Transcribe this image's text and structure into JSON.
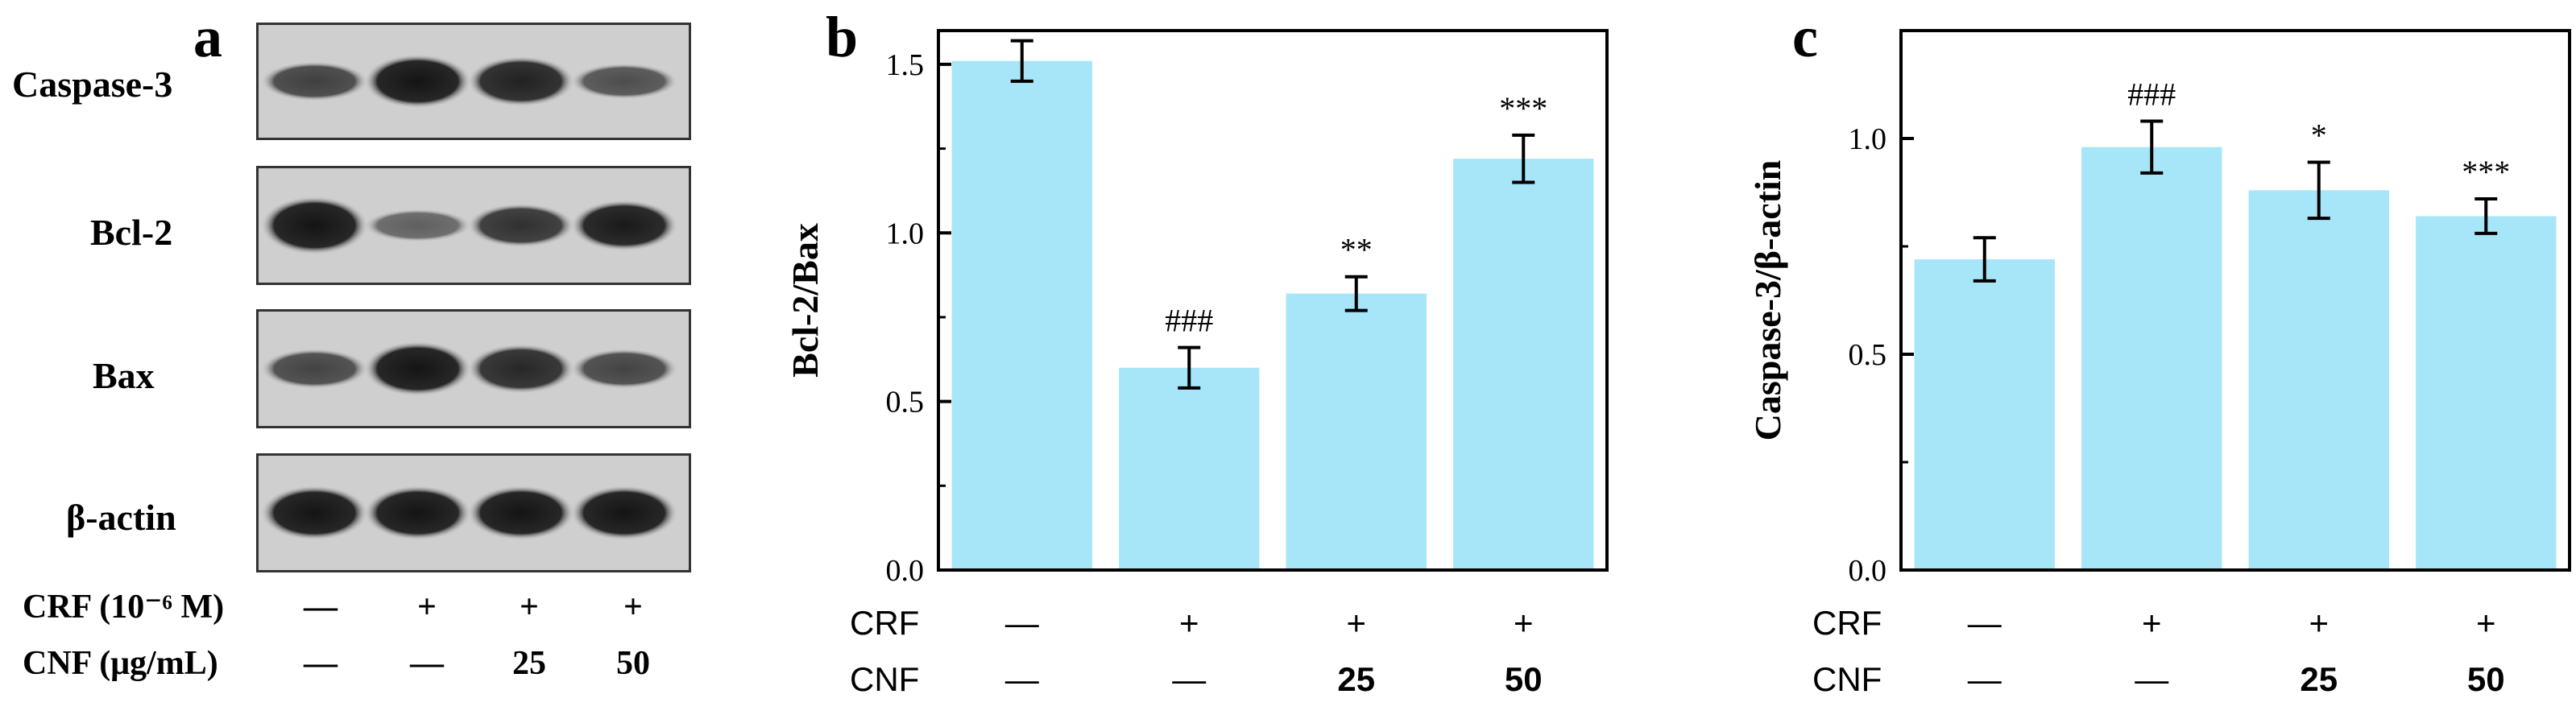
{
  "panel_a": {
    "letter": "a",
    "blots": [
      {
        "label": "Caspase-3",
        "intensities": [
          0.72,
          0.95,
          0.88,
          0.65
        ],
        "heights": [
          0.55,
          0.75,
          0.7,
          0.5
        ]
      },
      {
        "label": "Bcl-2",
        "intensities": [
          0.95,
          0.55,
          0.8,
          0.92
        ],
        "heights": [
          0.8,
          0.45,
          0.6,
          0.7
        ]
      },
      {
        "label": "Bax",
        "intensities": [
          0.7,
          0.95,
          0.85,
          0.7
        ],
        "heights": [
          0.55,
          0.75,
          0.68,
          0.55
        ]
      },
      {
        "label": "β-actin",
        "intensities": [
          0.95,
          0.95,
          0.95,
          0.95
        ],
        "heights": [
          0.75,
          0.75,
          0.75,
          0.75
        ]
      }
    ],
    "treatments": [
      {
        "label": "CRF (10⁻⁶ M)",
        "values": [
          "—",
          "+",
          "+",
          "+"
        ]
      },
      {
        "label": "CNF (μg/mL)",
        "values": [
          "—",
          "—",
          "25",
          "50"
        ]
      }
    ]
  },
  "chart_data": [
    {
      "panel": "b",
      "type": "bar",
      "categories": [
        "1",
        "2",
        "3",
        "4"
      ],
      "values": [
        1.51,
        0.6,
        0.82,
        1.22
      ],
      "errors": [
        0.06,
        0.06,
        0.05,
        0.07
      ],
      "annotations": [
        "",
        "###",
        "**",
        "***"
      ],
      "ylabel": "Bcl-2/Bax",
      "ylim": [
        0,
        1.6
      ],
      "yticks": [
        0.0,
        0.5,
        1.0,
        1.5
      ],
      "ytick_labels": [
        "0.0",
        "0.5",
        "1.0",
        "1.5"
      ],
      "bar_color": "#a6e6f8",
      "treatments": [
        {
          "label": "CRF",
          "values": [
            "—",
            "+",
            "+",
            "+"
          ]
        },
        {
          "label": "CNF",
          "values": [
            "—",
            "—",
            "25",
            "50"
          ]
        }
      ]
    },
    {
      "panel": "c",
      "type": "bar",
      "categories": [
        "1",
        "2",
        "3",
        "4"
      ],
      "values": [
        0.72,
        0.98,
        0.88,
        0.82
      ],
      "errors": [
        0.05,
        0.06,
        0.065,
        0.04
      ],
      "annotations": [
        "",
        "###",
        "*",
        "***"
      ],
      "ylabel": "Caspase-3/β-actin",
      "ylim": [
        0,
        1.25
      ],
      "yticks": [
        0.0,
        0.5,
        1.0
      ],
      "ytick_labels": [
        "0.0",
        "0.5",
        "1.0"
      ],
      "bar_color": "#a6e6f8",
      "treatments": [
        {
          "label": "CRF",
          "values": [
            "—",
            "+",
            "+",
            "+"
          ]
        },
        {
          "label": "CNF",
          "values": [
            "—",
            "—",
            "25",
            "50"
          ]
        }
      ]
    }
  ]
}
